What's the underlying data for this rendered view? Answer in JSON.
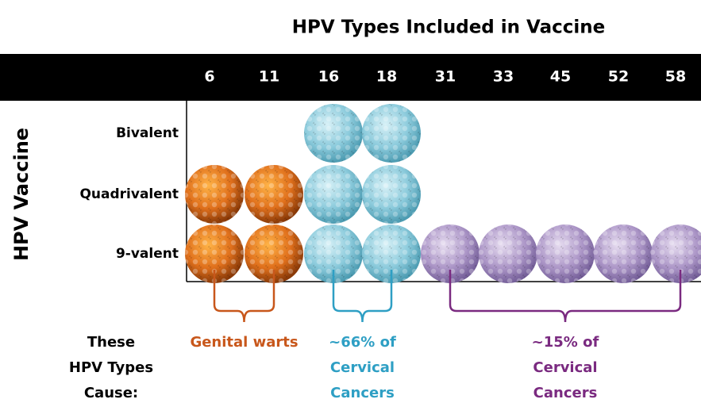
{
  "title": "HPV Types Included in Vaccine",
  "y_axis_label": "HPV Vaccine",
  "columns": [
    "6",
    "11",
    "16",
    "18",
    "31",
    "33",
    "45",
    "52",
    "58"
  ],
  "rows": [
    {
      "label": "Bivalent",
      "types": [
        "16",
        "18"
      ]
    },
    {
      "label": "Quadrivalent",
      "types": [
        "6",
        "11",
        "16",
        "18"
      ]
    },
    {
      "label": "9-valent",
      "types": [
        "6",
        "11",
        "16",
        "18",
        "31",
        "33",
        "45",
        "52",
        "58"
      ]
    }
  ],
  "cause_label": [
    "These",
    "HPV Types",
    "Cause:"
  ],
  "groups": [
    {
      "types": [
        "6",
        "11"
      ],
      "color": "#c8571b",
      "caption": [
        "Genital warts"
      ]
    },
    {
      "types": [
        "16",
        "18"
      ],
      "color": "#2e9fc4",
      "caption": [
        "~66% of",
        "Cervical",
        "Cancers"
      ]
    },
    {
      "types": [
        "31",
        "33",
        "45",
        "52",
        "58"
      ],
      "color": "#7a2a80",
      "caption": [
        "~15% of",
        "Cervical",
        "Cancers"
      ]
    }
  ]
}
